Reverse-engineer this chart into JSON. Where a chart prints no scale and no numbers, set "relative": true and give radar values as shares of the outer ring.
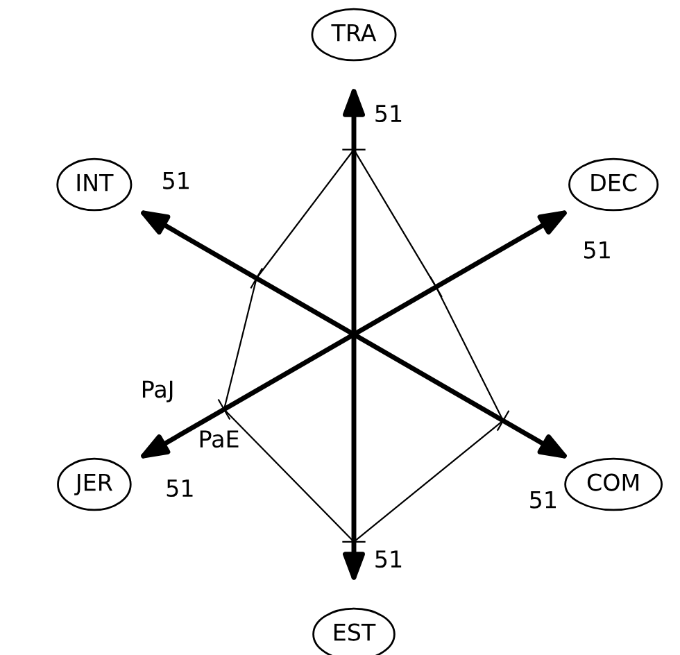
{
  "chart_data": {
    "type": "radar",
    "relative": true,
    "categories": [
      "TRA",
      "DEC",
      "COM",
      "EST",
      "JER",
      "INT"
    ],
    "series": [
      {
        "color": "#000000",
        "values": [
          0.74,
          0.38,
          0.69,
          0.83,
          0.6,
          0.45
        ]
      }
    ],
    "annotations": [
      "51",
      "51",
      "51",
      "51",
      "51",
      "51",
      "PaJ",
      "PaE"
    ],
    "marker": "none",
    "line_style": "solid",
    "legend": false
  }
}
